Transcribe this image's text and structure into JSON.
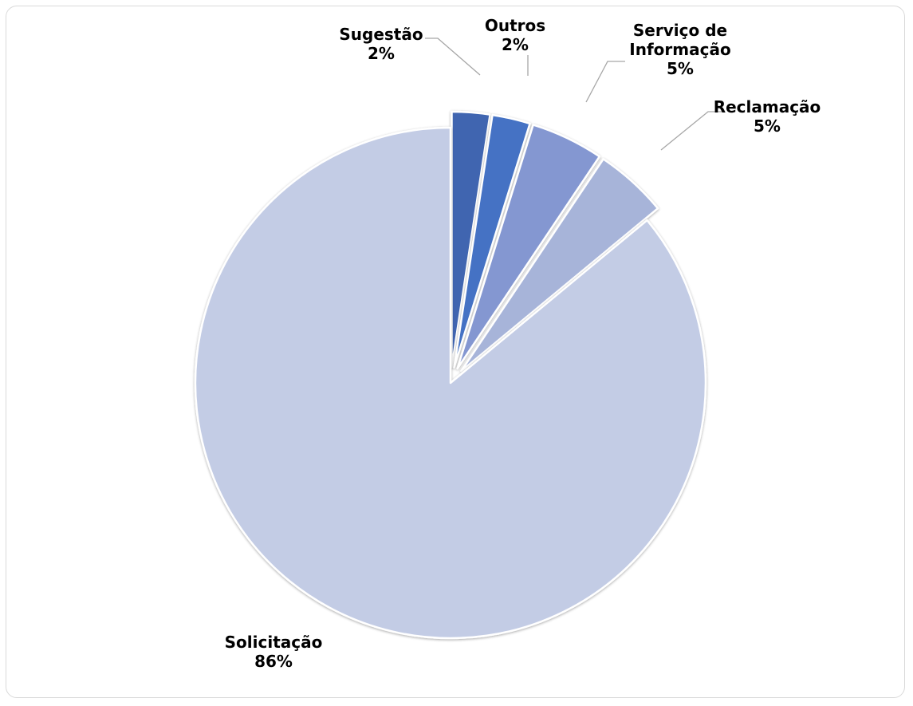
{
  "chart_data": {
    "type": "pie",
    "title": "",
    "legend": "none",
    "slices": [
      {
        "label": "Sugestão",
        "percent_label": "2%",
        "value": 2.4,
        "color": "#3f65b0",
        "exploded": true
      },
      {
        "label": "Outros",
        "percent_label": "2%",
        "value": 2.4,
        "color": "#4472c4",
        "exploded": true
      },
      {
        "label": "Serviço de Informação",
        "label_lines": [
          "Serviço de",
          "Informação"
        ],
        "percent_label": "5%",
        "value": 4.6,
        "color": "#8497d1",
        "exploded": true
      },
      {
        "label": "Reclamação",
        "percent_label": "5%",
        "value": 4.6,
        "color": "#a7b4d9",
        "exploded": true
      },
      {
        "label": "Solicitação",
        "percent_label": "86%",
        "value": 86.0,
        "color": "#c3cce5",
        "exploded": false
      }
    ]
  }
}
